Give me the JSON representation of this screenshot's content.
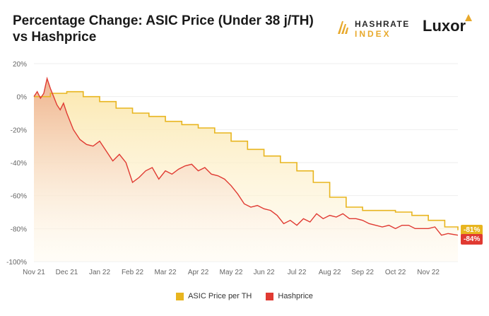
{
  "title": "Percentage Change: ASIC Price (Under 38 j/TH) vs Hashprice",
  "brands": {
    "hashrate_line1": "HASHRATE",
    "hashrate_line2": "INDEX",
    "luxor": "Luxor"
  },
  "colors": {
    "asic": "#e8b51f",
    "asic_fill": "#fbe8b0",
    "hashprice": "#e03a32",
    "hashprice_fill": "#eeb08c",
    "grid": "#eeeeee",
    "axis_text": "#666666"
  },
  "chart_data": {
    "type": "area",
    "title": "Percentage Change: ASIC Price (Under 38 j/TH) vs Hashprice",
    "xlabel": "",
    "ylabel": "",
    "ylim": [
      -100,
      20
    ],
    "yticks": [
      20,
      0,
      -20,
      -40,
      -60,
      -80,
      -100
    ],
    "ytick_labels": [
      "20%",
      "0%",
      "-20%",
      "-40%",
      "-60%",
      "-80%",
      "-100%"
    ],
    "x_labels": [
      "Nov 21",
      "Dec 21",
      "Jan 22",
      "Feb 22",
      "Mar 22",
      "Apr 22",
      "May 22",
      "Jun 22",
      "Jul 22",
      "Aug 22",
      "Sep 22",
      "Oct 22",
      "Nov 22"
    ],
    "x_range": [
      0,
      12.9
    ],
    "legend_position": "bottom",
    "grid": true,
    "series": [
      {
        "name": "ASIC Price per TH",
        "end_label": "-81%",
        "x": [
          0,
          0.5,
          1.0,
          1.5,
          2.0,
          2.5,
          3.0,
          3.5,
          4.0,
          4.5,
          5.0,
          5.5,
          6.0,
          6.5,
          7.0,
          7.5,
          8.0,
          8.5,
          9.0,
          9.5,
          10.0,
          10.5,
          11.0,
          11.5,
          12.0,
          12.5,
          12.9
        ],
        "values": [
          0,
          2,
          3,
          0,
          -3,
          -7,
          -10,
          -12,
          -15,
          -17,
          -19,
          -22,
          -27,
          -32,
          -36,
          -40,
          -45,
          -52,
          -61,
          -67,
          -69,
          -69,
          -70,
          -72,
          -75,
          -79,
          -81
        ]
      },
      {
        "name": "Hashprice",
        "end_label": "-84%",
        "x": [
          0,
          0.1,
          0.2,
          0.3,
          0.4,
          0.5,
          0.6,
          0.7,
          0.8,
          0.9,
          1.0,
          1.2,
          1.4,
          1.6,
          1.8,
          2.0,
          2.2,
          2.4,
          2.6,
          2.8,
          3.0,
          3.2,
          3.4,
          3.6,
          3.8,
          4.0,
          4.2,
          4.4,
          4.6,
          4.8,
          5.0,
          5.2,
          5.4,
          5.6,
          5.8,
          6.0,
          6.2,
          6.4,
          6.6,
          6.8,
          7.0,
          7.2,
          7.4,
          7.6,
          7.8,
          8.0,
          8.2,
          8.4,
          8.6,
          8.8,
          9.0,
          9.2,
          9.4,
          9.6,
          9.8,
          10.0,
          10.2,
          10.4,
          10.6,
          10.8,
          11.0,
          11.2,
          11.4,
          11.6,
          11.8,
          12.0,
          12.2,
          12.4,
          12.6,
          12.9
        ],
        "values": [
          0,
          3,
          -1,
          2,
          11,
          5,
          0,
          -5,
          -8,
          -4,
          -10,
          -20,
          -26,
          -29,
          -30,
          -27,
          -33,
          -39,
          -35,
          -40,
          -52,
          -49,
          -45,
          -43,
          -50,
          -45,
          -47,
          -44,
          -42,
          -41,
          -45,
          -43,
          -47,
          -48,
          -50,
          -54,
          -59,
          -65,
          -67,
          -66,
          -68,
          -69,
          -72,
          -77,
          -75,
          -78,
          -74,
          -76,
          -71,
          -74,
          -72,
          -73,
          -71,
          -74,
          -74,
          -75,
          -77,
          -78,
          -79,
          -78,
          -80,
          -78,
          -78,
          -80,
          -80,
          -80,
          -79,
          -84,
          -83,
          -84
        ]
      }
    ]
  }
}
